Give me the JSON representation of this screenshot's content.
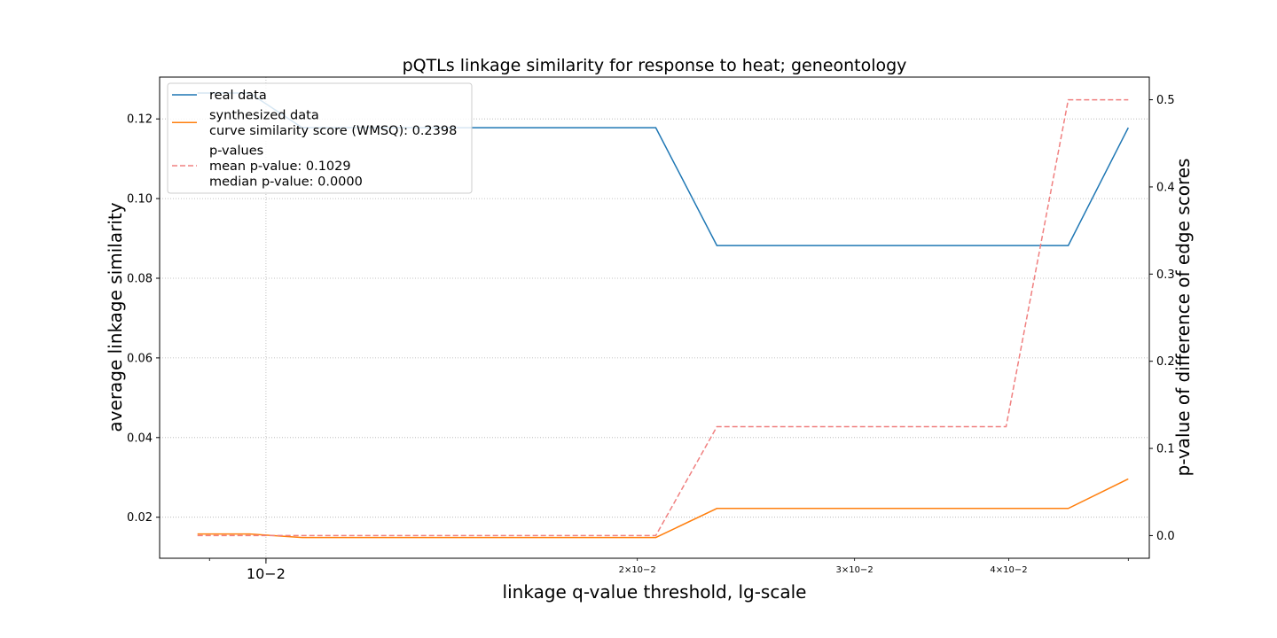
{
  "chart_data": {
    "type": "line",
    "title": "pQTLs linkage similarity for response to heat; geneontology",
    "xlabel": "linkage q-value threshold, lg-scale",
    "ylabel": "average linkage similarity",
    "y2label": "p-value of difference of edge scores",
    "xscale": "log",
    "xlim": [
      0.0082,
      0.052
    ],
    "ylim": [
      0.0097,
      0.1305
    ],
    "y2lim": [
      -0.026,
      0.526
    ],
    "grid": true,
    "legend_position": "upper-left",
    "x_ticks": [
      {
        "value": 0.01,
        "label": "10−2",
        "major": true
      },
      {
        "value": 0.02,
        "label": "2×10−2",
        "major": false
      },
      {
        "value": 0.03,
        "label": "3×10−2",
        "major": false
      },
      {
        "value": 0.04,
        "label": "4×10−2",
        "major": false
      }
    ],
    "y_ticks": [
      "0.02",
      "0.04",
      "0.06",
      "0.08",
      "0.10",
      "0.12"
    ],
    "y2_ticks": [
      "0.0",
      "0.1",
      "0.2",
      "0.3",
      "0.4",
      "0.5"
    ],
    "x": [
      0.0088,
      0.0097,
      0.0107,
      0.0207,
      0.0232,
      0.0398,
      0.0447,
      0.05
    ],
    "series": [
      {
        "name": "real data",
        "axis": "left",
        "color": "#1f77b4",
        "dash": "solid",
        "values": [
          0.1265,
          0.1265,
          0.1178,
          0.1178,
          0.0882,
          0.0882,
          0.0882,
          0.1178
        ]
      },
      {
        "name": "synthesized data",
        "legend_extra": [
          "curve similarity score (WMSQ): 0.2398"
        ],
        "axis": "left",
        "color": "#ff7f0e",
        "dash": "solid",
        "values": [
          0.0158,
          0.0158,
          0.0149,
          0.0149,
          0.0222,
          0.0222,
          0.0222,
          0.0296
        ]
      },
      {
        "name": "p-values",
        "legend_extra": [
          "mean p-value: 0.1029",
          "median p-value: 0.0000"
        ],
        "axis": "right",
        "color": "#f08080",
        "dash": "dashed",
        "values": [
          0.0,
          0.0,
          0.0,
          0.0,
          0.125,
          0.125,
          0.5,
          0.5
        ]
      }
    ]
  }
}
